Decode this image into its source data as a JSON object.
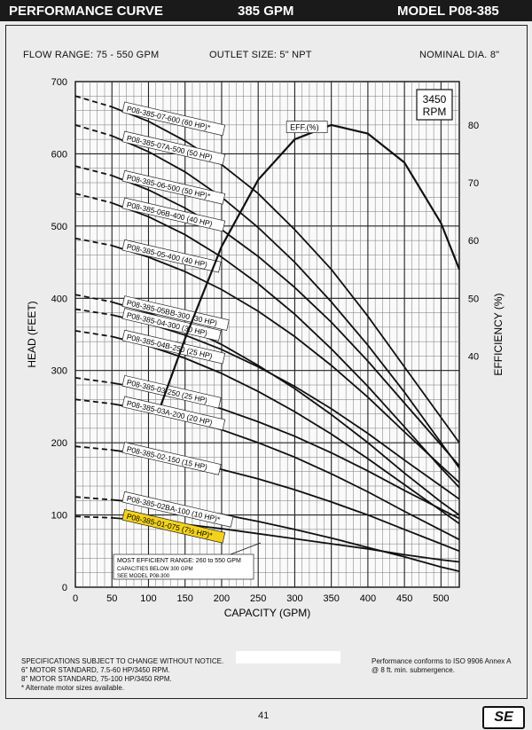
{
  "header": {
    "left": "PERFORMANCE CURVE",
    "center": "385 GPM",
    "right": "MODEL  P08-385"
  },
  "specs": {
    "flow_range": "FLOW RANGE: 75 - 550 GPM",
    "outlet": "OUTLET SIZE: 5\" NPT",
    "diameter": "NOMINAL DIA. 8\""
  },
  "footer": {
    "left": [
      "SPECIFICATIONS SUBJECT TO CHANGE WITHOUT NOTICE.",
      "6\" MOTOR STANDARD, 7.5-60 HP/3450 RPM.",
      "8\" MOTOR STANDARD, 75-100 HP/3450 RPM.",
      "* Alternate motor sizes available."
    ],
    "right": [
      "Performance conforms to ISO 9906 Annex A",
      "@ 8 ft. min. submergence."
    ],
    "page": "41",
    "logo": "SE"
  },
  "colors": {
    "highlight": "#f3d21a",
    "curve": "#111111",
    "grid": "#333333",
    "banner": "#1a1a1a"
  },
  "chart_data": {
    "type": "line",
    "xlabel": "CAPACITY (GPM)",
    "ylabel": "HEAD (FEET)",
    "y2label": "EFFICIENCY (%)",
    "xlim": [
      0,
      525
    ],
    "ylim": [
      0,
      700
    ],
    "y2lim": [
      0,
      87.5
    ],
    "xticks": [
      0,
      50,
      100,
      150,
      200,
      250,
      300,
      350,
      400,
      450,
      500
    ],
    "yticks": [
      0,
      100,
      200,
      300,
      400,
      500,
      600,
      700
    ],
    "y2ticks": [
      40,
      50,
      60,
      70,
      80
    ],
    "grid": true,
    "rpm_box": [
      "3450",
      "RPM"
    ],
    "note": {
      "line1": "MOST EFFICIENT RANGE: 260 to 550 GPM",
      "line2": "CAPACITIES BELOW 300 GPM",
      "line3": "SEE  MODEL  P08-300"
    },
    "series": [
      {
        "name": "P08-385-07-600 (60 HP)*",
        "x": [
          0,
          50,
          100,
          150,
          200,
          250,
          300,
          350,
          400,
          450,
          500,
          525
        ],
        "y": [
          680,
          665,
          645,
          618,
          585,
          545,
          495,
          440,
          375,
          305,
          235,
          200
        ]
      },
      {
        "name": "P08-385-07A-500 (50 HP)",
        "x": [
          0,
          50,
          100,
          150,
          200,
          250,
          300,
          350,
          400,
          450,
          500,
          525
        ],
        "y": [
          640,
          625,
          603,
          575,
          540,
          498,
          450,
          395,
          335,
          270,
          200,
          165
        ]
      },
      {
        "name": "P08-385-06-500 (50 HP)*",
        "x": [
          0,
          50,
          100,
          150,
          200,
          250,
          300,
          350,
          400,
          450,
          500,
          525
        ],
        "y": [
          583,
          570,
          550,
          525,
          495,
          458,
          415,
          367,
          313,
          255,
          197,
          168
        ]
      },
      {
        "name": "P08-385-06B-400 (40 HP)",
        "x": [
          0,
          50,
          100,
          150,
          200,
          250,
          300,
          350,
          400,
          450,
          500,
          525
        ],
        "y": [
          545,
          532,
          513,
          488,
          457,
          420,
          378,
          330,
          278,
          222,
          165,
          138
        ]
      },
      {
        "name": "P08-385-05-400 (40 HP)",
        "x": [
          0,
          50,
          100,
          150,
          200,
          250,
          300,
          350,
          400,
          450,
          500,
          525
        ],
        "y": [
          483,
          473,
          457,
          437,
          412,
          382,
          347,
          307,
          263,
          215,
          168,
          145
        ]
      },
      {
        "name": "P08-385-05BB-300 (30 HP)",
        "x": [
          0,
          50,
          100,
          150,
          200,
          250,
          300,
          350,
          400,
          450,
          500,
          525
        ],
        "y": [
          405,
          395,
          380,
          360,
          336,
          307,
          275,
          239,
          200,
          158,
          118,
          100
        ]
      },
      {
        "name": "P08-385-04-300 (30 HP)",
        "x": [
          0,
          50,
          100,
          150,
          200,
          250,
          300,
          350,
          400,
          450,
          500,
          525
        ],
        "y": [
          385,
          377,
          365,
          349,
          329,
          305,
          278,
          247,
          213,
          176,
          140,
          122
        ]
      },
      {
        "name": "P08-385-04B-250 (25 HP)",
        "x": [
          0,
          50,
          100,
          150,
          200,
          250,
          300,
          350,
          400,
          450,
          500,
          525
        ],
        "y": [
          355,
          347,
          334,
          317,
          296,
          271,
          243,
          212,
          178,
          142,
          106,
          88
        ]
      },
      {
        "name": "P08-385-03-250 (25 HP)",
        "x": [
          0,
          50,
          100,
          150,
          200,
          250,
          300,
          350,
          400,
          450,
          500,
          525
        ],
        "y": [
          290,
          283,
          274,
          262,
          247,
          229,
          209,
          186,
          161,
          134,
          108,
          95
        ]
      },
      {
        "name": "P08-385-03A-200 (20 HP)",
        "x": [
          0,
          50,
          100,
          150,
          200,
          250,
          300,
          350,
          400,
          450,
          500,
          525
        ],
        "y": [
          260,
          254,
          245,
          233,
          218,
          200,
          180,
          157,
          132,
          105,
          79,
          66
        ]
      },
      {
        "name": "P08-385-02-150 (15 HP)",
        "x": [
          0,
          50,
          100,
          150,
          200,
          250,
          300,
          350,
          400,
          450,
          500,
          525
        ],
        "y": [
          195,
          190,
          183,
          174,
          163,
          150,
          135,
          118,
          100,
          80,
          60,
          50
        ]
      },
      {
        "name": "P08-385-02BA-100 (10 HP)*",
        "x": [
          0,
          50,
          100,
          150,
          200,
          250,
          300,
          350,
          400,
          450,
          500,
          525
        ],
        "y": [
          125,
          121,
          116,
          109,
          101,
          91,
          80,
          68,
          55,
          42,
          28,
          22
        ]
      },
      {
        "name": "P08-385-01-075 (7½ HP)*",
        "x": [
          0,
          50,
          100,
          150,
          200,
          250,
          300,
          350,
          400,
          450,
          500,
          525
        ],
        "y": [
          98,
          96,
          92,
          87,
          81,
          74,
          67,
          60,
          53,
          45,
          38,
          35
        ],
        "highlight": true
      }
    ],
    "efficiency": {
      "name": "EFF.(%)",
      "x": [
        117,
        150,
        200,
        250,
        300,
        350,
        400,
        450,
        500,
        525
      ],
      "eff": [
        31.5,
        43,
        59,
        70.5,
        77.5,
        80,
        78.5,
        73.5,
        63,
        55
      ]
    }
  }
}
